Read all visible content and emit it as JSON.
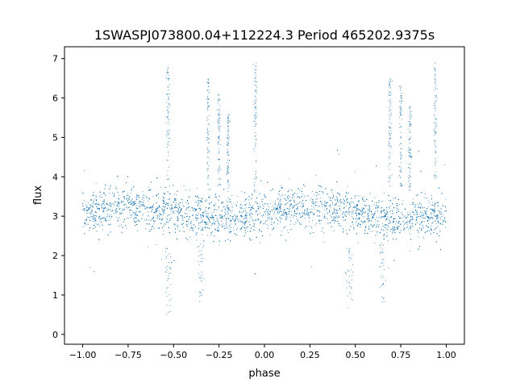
{
  "chart_data": {
    "type": "scatter",
    "title": "1SWASPJ073800.04+112224.3 Period 465202.9375s",
    "xlabel": "phase",
    "ylabel": "flux",
    "xlim": [
      -1.1,
      1.1
    ],
    "ylim": [
      -0.25,
      7.3
    ],
    "xticks": [
      -1.0,
      -0.75,
      -0.5,
      -0.25,
      0.0,
      0.25,
      0.5,
      0.75,
      1.0
    ],
    "xtick_labels": [
      "−1.00",
      "−0.75",
      "−0.50",
      "−0.25",
      "0.00",
      "0.25",
      "0.50",
      "0.75",
      "1.00"
    ],
    "yticks": [
      0,
      1,
      2,
      3,
      4,
      5,
      6,
      7
    ],
    "ytick_labels": [
      "0",
      "1",
      "2",
      "3",
      "4",
      "5",
      "6",
      "7"
    ],
    "grid": false,
    "legend": "none",
    "marker_color": "#1f77b4",
    "series": [
      {
        "baseline_flux": 3.1,
        "typical_flux_range": [
          2.2,
          4.0
        ],
        "flare_spikes": [
          {
            "phase": -0.53,
            "peak_flux": 6.9
          },
          {
            "phase": -0.31,
            "peak_flux": 6.5
          },
          {
            "phase": -0.25,
            "peak_flux": 6.2
          },
          {
            "phase": -0.2,
            "peak_flux": 5.6
          },
          {
            "phase": -0.05,
            "peak_flux": 6.9
          },
          {
            "phase": 0.69,
            "peak_flux": 6.5
          },
          {
            "phase": 0.75,
            "peak_flux": 6.3
          },
          {
            "phase": 0.8,
            "peak_flux": 5.8
          },
          {
            "phase": 0.94,
            "peak_flux": 6.9
          }
        ],
        "dips": [
          {
            "phase": -0.53,
            "min_flux": 0.5
          },
          {
            "phase": -0.35,
            "min_flux": 0.7
          },
          {
            "phase": 0.47,
            "min_flux": 0.5
          },
          {
            "phase": 0.65,
            "min_flux": 0.7
          }
        ]
      }
    ]
  }
}
